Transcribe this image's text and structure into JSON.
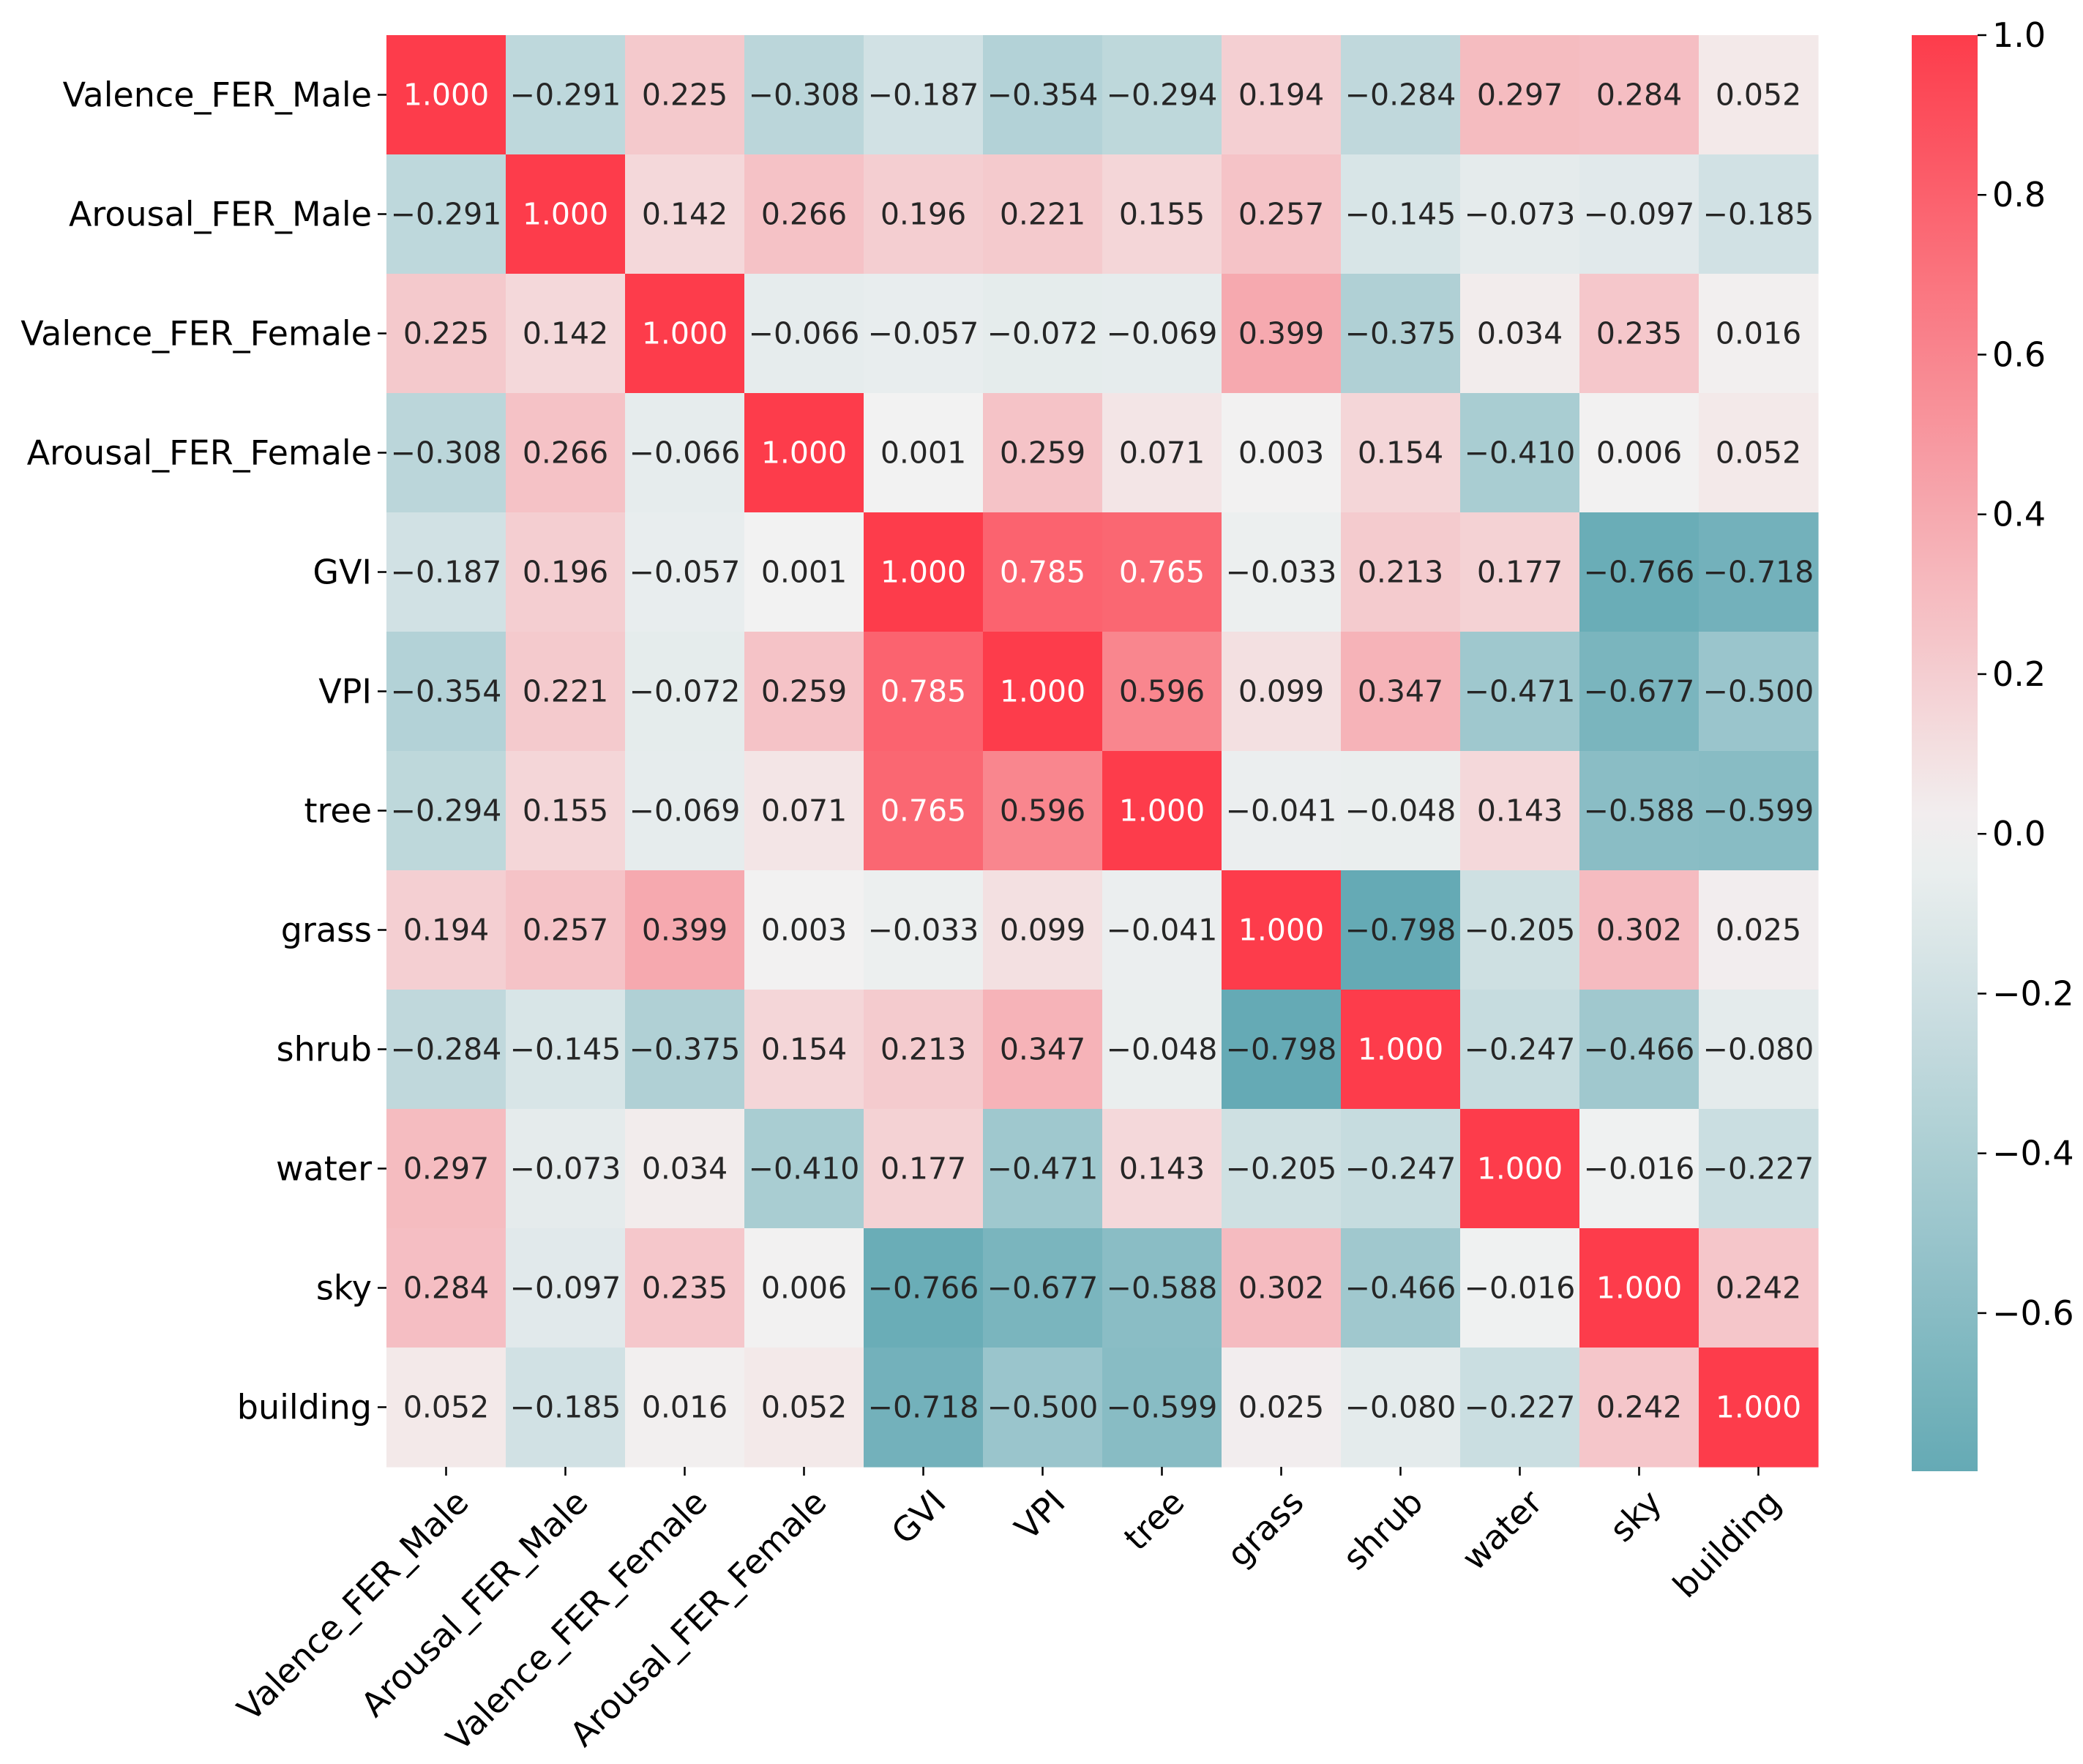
{
  "chart_data": {
    "type": "heatmap",
    "title": "",
    "xlabel": "",
    "ylabel": "",
    "labels": [
      "Valence_FER_Male",
      "Arousal_FER_Male",
      "Valence_FER_Female",
      "Arousal_FER_Female",
      "GVI",
      "VPI",
      "tree",
      "grass",
      "shrub",
      "water",
      "sky",
      "building"
    ],
    "values": [
      [
        1.0,
        -0.291,
        0.225,
        -0.308,
        -0.187,
        -0.354,
        -0.294,
        0.194,
        -0.284,
        0.297,
        0.284,
        0.052
      ],
      [
        -0.291,
        1.0,
        0.142,
        0.266,
        0.196,
        0.221,
        0.155,
        0.257,
        -0.145,
        -0.073,
        -0.097,
        -0.185
      ],
      [
        0.225,
        0.142,
        1.0,
        -0.066,
        -0.057,
        -0.072,
        -0.069,
        0.399,
        -0.375,
        0.034,
        0.235,
        0.016
      ],
      [
        -0.308,
        0.266,
        -0.066,
        1.0,
        0.001,
        0.259,
        0.071,
        0.003,
        0.154,
        -0.41,
        0.006,
        0.052
      ],
      [
        -0.187,
        0.196,
        -0.057,
        0.001,
        1.0,
        0.785,
        0.765,
        -0.033,
        0.213,
        0.177,
        -0.766,
        -0.718
      ],
      [
        -0.354,
        0.221,
        -0.072,
        0.259,
        0.785,
        1.0,
        0.596,
        0.099,
        0.347,
        -0.471,
        -0.677,
        -0.5
      ],
      [
        -0.294,
        0.155,
        -0.069,
        0.071,
        0.765,
        0.596,
        1.0,
        -0.041,
        -0.048,
        0.143,
        -0.588,
        -0.599
      ],
      [
        0.194,
        0.257,
        0.399,
        0.003,
        -0.033,
        0.099,
        -0.041,
        1.0,
        -0.798,
        -0.205,
        0.302,
        0.025
      ],
      [
        -0.284,
        -0.145,
        -0.375,
        0.154,
        0.213,
        0.347,
        -0.048,
        -0.798,
        1.0,
        -0.247,
        -0.466,
        -0.08
      ],
      [
        0.297,
        -0.073,
        0.034,
        -0.41,
        0.177,
        -0.471,
        0.143,
        -0.205,
        -0.247,
        1.0,
        -0.016,
        -0.227
      ],
      [
        0.284,
        -0.097,
        0.235,
        0.006,
        -0.766,
        -0.677,
        -0.588,
        0.302,
        -0.466,
        -0.016,
        1.0,
        0.242
      ],
      [
        0.052,
        -0.185,
        0.016,
        0.052,
        -0.718,
        -0.5,
        -0.599,
        0.025,
        -0.08,
        -0.227,
        0.242,
        1.0
      ]
    ],
    "cell_labels": [
      [
        "1.000",
        "−0.291",
        "0.225",
        "−0.308",
        "−0.187",
        "−0.354",
        "−0.294",
        "0.194",
        "−0.284",
        "0.297",
        "0.284",
        "0.052"
      ],
      [
        "−0.291",
        "1.000",
        "0.142",
        "0.266",
        "0.196",
        "0.221",
        "0.155",
        "0.257",
        "−0.145",
        "−0.073",
        "−0.097",
        "−0.185"
      ],
      [
        "0.225",
        "0.142",
        "1.000",
        "−0.066",
        "−0.057",
        "−0.072",
        "−0.069",
        "0.399",
        "−0.375",
        "0.034",
        "0.235",
        "0.016"
      ],
      [
        "−0.308",
        "0.266",
        "−0.066",
        "1.000",
        "0.001",
        "0.259",
        "0.071",
        "0.003",
        "0.154",
        "−0.410",
        "0.006",
        "0.052"
      ],
      [
        "−0.187",
        "0.196",
        "−0.057",
        "0.001",
        "1.000",
        "0.785",
        "0.765",
        "−0.033",
        "0.213",
        "0.177",
        "−0.766",
        "−0.718"
      ],
      [
        "−0.354",
        "0.221",
        "−0.072",
        "0.259",
        "0.785",
        "1.000",
        "0.596",
        "0.099",
        "0.347",
        "−0.471",
        "−0.677",
        "−0.500"
      ],
      [
        "−0.294",
        "0.155",
        "−0.069",
        "0.071",
        "0.765",
        "0.596",
        "1.000",
        "−0.041",
        "−0.048",
        "0.143",
        "−0.588",
        "−0.599"
      ],
      [
        "0.194",
        "0.257",
        "0.399",
        "0.003",
        "−0.033",
        "0.099",
        "−0.041",
        "1.000",
        "−0.798",
        "−0.205",
        "0.302",
        "0.025"
      ],
      [
        "−0.284",
        "−0.145",
        "−0.375",
        "0.154",
        "0.213",
        "0.347",
        "−0.048",
        "−0.798",
        "1.000",
        "−0.247",
        "−0.466",
        "−0.080"
      ],
      [
        "0.297",
        "−0.073",
        "0.034",
        "−0.410",
        "0.177",
        "−0.471",
        "0.143",
        "−0.205",
        "−0.247",
        "1.000",
        "−0.016",
        "−0.227"
      ],
      [
        "0.284",
        "−0.097",
        "0.235",
        "0.006",
        "−0.766",
        "−0.677",
        "−0.588",
        "0.302",
        "−0.466",
        "−0.016",
        "1.000",
        "0.242"
      ],
      [
        "0.052",
        "−0.185",
        "0.016",
        "0.052",
        "−0.718",
        "−0.500",
        "−0.599",
        "0.025",
        "−0.080",
        "−0.227",
        "0.242",
        "1.000"
      ]
    ],
    "colorbar": {
      "vmin": -0.798,
      "vmax": 1.0,
      "ticks": [
        1.0,
        0.8,
        0.6,
        0.4,
        0.2,
        0.0,
        -0.2,
        -0.4,
        -0.6
      ],
      "tick_labels": [
        "1.0",
        "0.8",
        "0.6",
        "0.4",
        "0.2",
        "0.0",
        "−0.2",
        "−0.4",
        "−0.6"
      ]
    },
    "colors": {
      "negative": "#4198a5",
      "center": "#f2f2f2",
      "positive": "#fd3c4b",
      "text_dark": "#262626",
      "text_light": "#ffffff",
      "axis": "#000000"
    }
  }
}
